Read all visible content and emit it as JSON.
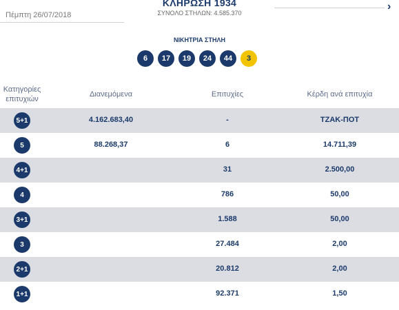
{
  "header": {
    "date": "Πέμπτη 26/07/2018",
    "draw_title": "ΚΛΗΡΩΣΗ 1934",
    "draw_subtitle": "ΣΥΝΟΛΟ ΣΤΗΛΩΝ: 4.585.370",
    "next_icon": "chevron-right-icon"
  },
  "winning": {
    "label": "ΝΙΚΗΤΡΙΑ ΣΤΗΛΗ",
    "numbers": [
      "6",
      "17",
      "19",
      "24",
      "44"
    ],
    "joker": "3"
  },
  "table": {
    "headers": {
      "category": "Κατηγορίες επιτυχιών",
      "distributed": "Διανεμόμενα",
      "winners": "Επιτυχίες",
      "prize": "Κέρδη ανά επιτυχία"
    },
    "rows": [
      {
        "category": "5+1",
        "distributed": "4.162.683,40",
        "winners": "-",
        "prize": "ΤΖΑΚ-ΠΟΤ"
      },
      {
        "category": "5",
        "distributed": "88.268,37",
        "winners": "6",
        "prize": "14.711,39"
      },
      {
        "category": "4+1",
        "distributed": "",
        "winners": "31",
        "prize": "2.500,00"
      },
      {
        "category": "4",
        "distributed": "",
        "winners": "786",
        "prize": "50,00"
      },
      {
        "category": "3+1",
        "distributed": "",
        "winners": "1.588",
        "prize": "50,00"
      },
      {
        "category": "3",
        "distributed": "",
        "winners": "27.484",
        "prize": "2,00"
      },
      {
        "category": "2+1",
        "distributed": "",
        "winners": "20.812",
        "prize": "2,00"
      },
      {
        "category": "1+1",
        "distributed": "",
        "winners": "92.371",
        "prize": "1,50"
      }
    ]
  },
  "colors": {
    "primary": "#1b3a6b",
    "joker": "#f2c400",
    "row_alt": "#dcdde3"
  }
}
